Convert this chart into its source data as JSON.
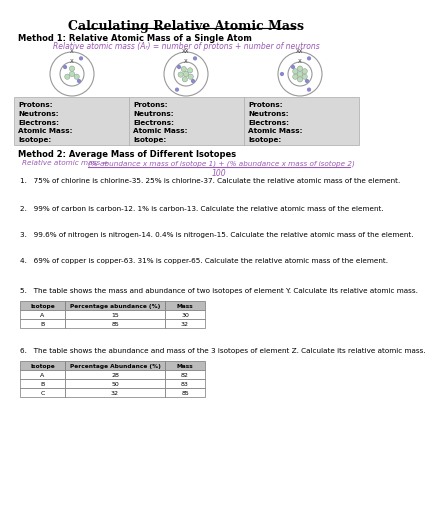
{
  "title": "Calculating Relative Atomic Mass",
  "method1_heading": "Method 1: Relative Atomic Mass of a Single Atom",
  "method1_formula": "Relative atomic mass (Aᵣ) = number of protons + number of neutrons",
  "method2_heading": "Method 2: Average Mass of Different Isotopes",
  "method2_formula_num": "(% abundance x mass of isotope 1) + (% abundance x mass of isotope 2)",
  "method2_formula_prefix": "Relative atomic mass = ",
  "method2_formula_denom": "100",
  "atom_properties": [
    "Protons:",
    "Neutrons:",
    "Electrons:",
    "Atomic Mass:",
    "Isotope:"
  ],
  "questions": [
    "1.   75% of chlorine is chlorine-35. 25% is chlorine-37. Calculate the relative atomic mass of the element.",
    "2.   99% of carbon is carbon-12. 1% is carbon-13. Calculate the relative atomic mass of the element.",
    "3.   99.6% of nitrogen is nitrogen-14. 0.4% is nitrogen-15. Calculate the relative atomic mass of the element.",
    "4.   69% of copper is copper-63. 31% is copper-65. Calculate the relative atomic mass of the element.",
    "5.   The table shows the mass and abundance of two isotopes of element Y. Calculate its relative atomic mass.",
    "6.   The table shows the abundance and mass of the 3 isotopes of element Z. Calculate its relative atomic mass."
  ],
  "table5_headers": [
    "Isotope",
    "Percentage abundance (%)",
    "Mass"
  ],
  "table5_rows": [
    [
      "A",
      "15",
      "30"
    ],
    [
      "B",
      "85",
      "32"
    ]
  ],
  "table6_headers": [
    "Isotope",
    "Percentage Abundance (%)",
    "Mass"
  ],
  "table6_rows": [
    [
      "A",
      "28",
      "82"
    ],
    [
      "B",
      "50",
      "83"
    ],
    [
      "C",
      "32",
      "85"
    ]
  ],
  "bg_color": "#ffffff",
  "text_color": "#000000",
  "formula_color": "#9b59b6",
  "table_header_bg": "#bbbbbb",
  "table_row_bg": "#ffffff",
  "section_bg": "#d8d8d8",
  "nucleus_color": "#b8ddb8",
  "electron_color": "#8888cc",
  "shell_color": "#999999"
}
